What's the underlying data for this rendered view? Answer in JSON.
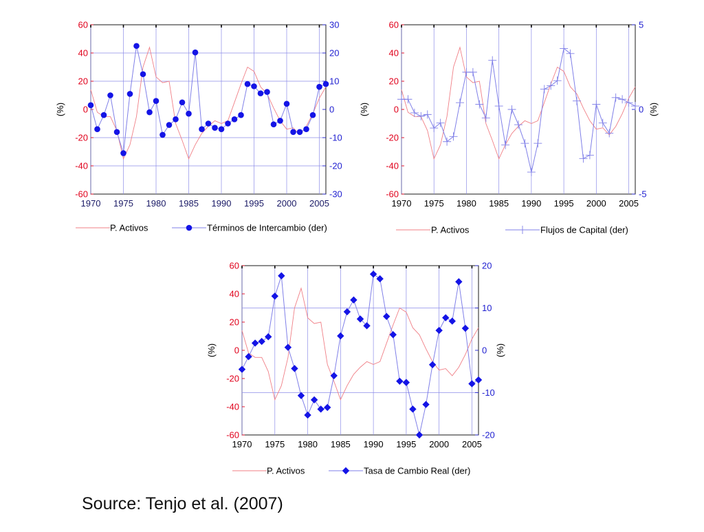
{
  "source": "Source: Tenjo et al. (2007)",
  "colors": {
    "left_axis": "#e0001b",
    "right_axis": "#1f1fd0",
    "p_activos_line": "#f07f86",
    "series_line": "#7f7fe8",
    "series_marker": "#1414e6",
    "grid": "#8d8de8",
    "frame": "#000000",
    "year_labels_top_left": "#1a1a66"
  },
  "chart_data": [
    {
      "type": "line",
      "title": "",
      "xlabel": "",
      "ylabel": "(%)",
      "ylabel_right": "",
      "xlim": [
        1970,
        2006
      ],
      "ylim": [
        -60,
        60
      ],
      "ylim_right": [
        -30,
        30
      ],
      "x_ticks": [
        1970,
        1975,
        1980,
        1985,
        1990,
        1995,
        2000,
        2005
      ],
      "x_tick_labels": [
        "1970",
        "1975",
        "1980",
        "1985",
        "1990",
        "1995",
        "2000",
        "2005"
      ],
      "y_ticks": [
        -60,
        -40,
        -20,
        0,
        20,
        40,
        60
      ],
      "y_tick_labels": [
        "-60",
        "-40",
        "-20",
        "0",
        "20",
        "40",
        "60"
      ],
      "y2_ticks": [
        -30,
        -20,
        -10,
        0,
        10,
        20,
        30
      ],
      "y2_tick_labels": [
        "-30",
        "-20",
        "-10",
        "0",
        "10",
        "20",
        "30"
      ],
      "grid_y2": [
        -20,
        -10,
        10,
        20
      ],
      "marker": "circle",
      "legend": [
        "P. Activos",
        "Términos de Intercambio (der)"
      ],
      "legend_placement": "below",
      "series": [
        {
          "name": "P. Activos",
          "axis": "left",
          "x": [
            1970,
            1971,
            1972,
            1973,
            1974,
            1975,
            1976,
            1977,
            1978,
            1979,
            1980,
            1981,
            1982,
            1983,
            1984,
            1985,
            1986,
            1987,
            1988,
            1989,
            1990,
            1991,
            1992,
            1993,
            1994,
            1995,
            1996,
            1997,
            1998,
            1999,
            2000,
            2001,
            2002,
            2003,
            2004,
            2005,
            2006
          ],
          "values": [
            14,
            -2,
            -5,
            -5,
            -15,
            -35,
            -25,
            -5,
            30,
            44,
            23,
            19,
            20,
            -10,
            -22,
            -35,
            -25,
            -17,
            -12,
            -8,
            -10,
            -8,
            5,
            18,
            30,
            27,
            16,
            11,
            1,
            -8,
            -14,
            -13,
            -18,
            -12,
            -3,
            8,
            16
          ]
        },
        {
          "name": "Términos de Intercambio (der)",
          "axis": "right",
          "x": [
            1970,
            1971,
            1972,
            1973,
            1974,
            1975,
            1976,
            1977,
            1978,
            1979,
            1980,
            1981,
            1982,
            1983,
            1984,
            1985,
            1986,
            1987,
            1988,
            1989,
            1990,
            1991,
            1992,
            1993,
            1994,
            1995,
            1996,
            1997,
            1998,
            1999,
            2000,
            2001,
            2002,
            2003,
            2004,
            2005,
            2006
          ],
          "values": [
            1.5,
            -7,
            -2,
            5,
            -8,
            -15.5,
            5.5,
            22.5,
            12.5,
            -1,
            3,
            -9,
            -5.5,
            -3.5,
            2.5,
            -1.5,
            20.2,
            -7,
            -5,
            -6.5,
            -7,
            -5,
            -3.5,
            -2,
            9,
            8.2,
            5.7,
            6.2,
            -5.3,
            -4,
            2,
            -8,
            -8,
            -7,
            -2,
            8,
            9
          ]
        }
      ]
    },
    {
      "type": "line",
      "title": "",
      "xlabel": "",
      "ylabel": "(%)",
      "ylabel_right": "(%)",
      "xlim": [
        1970,
        2006
      ],
      "ylim": [
        -60,
        60
      ],
      "ylim_right": [
        -5,
        5
      ],
      "x_ticks": [
        1970,
        1975,
        1980,
        1985,
        1990,
        1995,
        2000,
        2005
      ],
      "x_tick_labels": [
        "1970",
        "1975",
        "1980",
        "1985",
        "1990",
        "1995",
        "2000",
        "2005"
      ],
      "y_ticks": [
        -60,
        -40,
        -20,
        0,
        20,
        40,
        60
      ],
      "y_tick_labels": [
        "-60",
        "-40",
        "-20",
        "0",
        "20",
        "40",
        "60"
      ],
      "y2_ticks": [
        -5,
        0,
        5
      ],
      "y2_tick_labels": [
        "-5",
        "0",
        "5"
      ],
      "grid_y2": [],
      "marker": "plus",
      "legend": [
        "P. Activos",
        "Flujos de Capital (der)"
      ],
      "legend_placement": "below",
      "series": [
        {
          "name": "P. Activos",
          "axis": "left",
          "x": [
            1970,
            1971,
            1972,
            1973,
            1974,
            1975,
            1976,
            1977,
            1978,
            1979,
            1980,
            1981,
            1982,
            1983,
            1984,
            1985,
            1986,
            1987,
            1988,
            1989,
            1990,
            1991,
            1992,
            1993,
            1994,
            1995,
            1996,
            1997,
            1998,
            1999,
            2000,
            2001,
            2002,
            2003,
            2004,
            2005,
            2006
          ],
          "values": [
            14,
            -2,
            -5,
            -5,
            -15,
            -35,
            -25,
            -5,
            30,
            44,
            23,
            19,
            20,
            -10,
            -22,
            -35,
            -25,
            -17,
            -12,
            -8,
            -10,
            -8,
            5,
            18,
            30,
            27,
            16,
            11,
            1,
            -8,
            -14,
            -13,
            -18,
            -12,
            -3,
            8,
            16
          ]
        },
        {
          "name": "Flujos de Capital (der)",
          "axis": "right",
          "x": [
            1970,
            1971,
            1972,
            1973,
            1974,
            1975,
            1976,
            1977,
            1978,
            1979,
            1980,
            1981,
            1982,
            1983,
            1984,
            1985,
            1986,
            1987,
            1988,
            1989,
            1990,
            1991,
            1992,
            1993,
            1994,
            1995,
            1996,
            1997,
            1998,
            1999,
            2000,
            2001,
            2002,
            2003,
            2004,
            2005,
            2006
          ],
          "values": [
            0.6,
            0.6,
            -0.2,
            -0.4,
            -0.3,
            -1.1,
            -0.8,
            -1.9,
            -1.6,
            0.4,
            2.2,
            2.2,
            0.3,
            -0.5,
            2.9,
            0.2,
            -2.1,
            0,
            -0.9,
            -2.0,
            -3.7,
            -2.0,
            1.2,
            1.4,
            1.7,
            3.6,
            3.3,
            0.5,
            -2.9,
            -2.7,
            0.3,
            -0.8,
            -1.4,
            0.7,
            0.6,
            0.4,
            0.2
          ]
        }
      ]
    },
    {
      "type": "line",
      "title": "",
      "xlabel": "",
      "ylabel": "(%)",
      "ylabel_right": "(%)",
      "xlim": [
        1970,
        2006
      ],
      "ylim": [
        -60,
        60
      ],
      "ylim_right": [
        -20,
        20
      ],
      "x_ticks": [
        1970,
        1975,
        1980,
        1985,
        1990,
        1995,
        2000,
        2005
      ],
      "x_tick_labels": [
        "1970",
        "1975",
        "1980",
        "1985",
        "1990",
        "1995",
        "2000",
        "2005"
      ],
      "y_ticks": [
        -60,
        -40,
        -20,
        0,
        20,
        40,
        60
      ],
      "y_tick_labels": [
        "-60",
        "-40",
        "-20",
        "0",
        "20",
        "40",
        "60"
      ],
      "y2_ticks": [
        -20,
        -10,
        0,
        10,
        20
      ],
      "y2_tick_labels": [
        "-20",
        "-10",
        "0",
        "10",
        "20"
      ],
      "grid_y2": [
        -10,
        10
      ],
      "marker": "diamond",
      "legend": [
        "P. Activos",
        "Tasa de Cambio Real (der)"
      ],
      "legend_placement": "below",
      "series": [
        {
          "name": "P. Activos",
          "axis": "left",
          "x": [
            1970,
            1971,
            1972,
            1973,
            1974,
            1975,
            1976,
            1977,
            1978,
            1979,
            1980,
            1981,
            1982,
            1983,
            1984,
            1985,
            1986,
            1987,
            1988,
            1989,
            1990,
            1991,
            1992,
            1993,
            1994,
            1995,
            1996,
            1997,
            1998,
            1999,
            2000,
            2001,
            2002,
            2003,
            2004,
            2005,
            2006
          ],
          "values": [
            14,
            -2,
            -5,
            -5,
            -15,
            -35,
            -25,
            -5,
            30,
            44,
            23,
            19,
            20,
            -10,
            -22,
            -35,
            -25,
            -17,
            -12,
            -8,
            -10,
            -8,
            5,
            18,
            30,
            27,
            16,
            11,
            1,
            -8,
            -14,
            -13,
            -18,
            -12,
            -3,
            8,
            16
          ]
        },
        {
          "name": "Tasa de Cambio Real (der)",
          "axis": "right",
          "x": [
            1970,
            1971,
            1972,
            1973,
            1974,
            1975,
            1976,
            1977,
            1978,
            1979,
            1980,
            1981,
            1982,
            1983,
            1984,
            1985,
            1986,
            1987,
            1988,
            1989,
            1990,
            1991,
            1992,
            1993,
            1994,
            1995,
            1996,
            1997,
            1998,
            1999,
            2000,
            2001,
            2002,
            2003,
            2004,
            2005,
            2006
          ],
          "values": [
            -4.5,
            -1.5,
            1.7,
            2.1,
            3.2,
            12.8,
            17.6,
            0.7,
            -4.3,
            -10.7,
            -15.3,
            -11.7,
            -13.9,
            -13.5,
            -6.0,
            3.4,
            9.1,
            11.9,
            7.4,
            5.8,
            18.0,
            16.9,
            8.0,
            3.7,
            -7.3,
            -7.6,
            -13.9,
            -20.0,
            -12.8,
            -3.4,
            4.7,
            7.7,
            6.9,
            16.2,
            5.2,
            -7.9,
            -7.0
          ]
        }
      ]
    }
  ]
}
